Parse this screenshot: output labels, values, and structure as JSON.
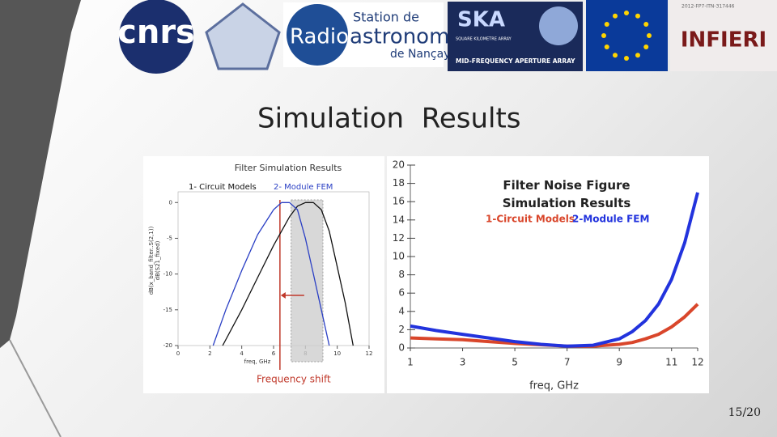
{
  "logos": {
    "cnrs": "cnrs",
    "nancay": [
      "Station de",
      "Radio",
      "astronomie",
      "de Nançay"
    ],
    "ska": [
      "SKA",
      "SQUARE KILOMETRE ARRAY",
      "MID-FREQUENCY APERTURE ARRAY"
    ],
    "infieri": [
      "2012-FP7-ITN-317446",
      "INFIERI"
    ]
  },
  "title": "Simulation  Results",
  "page_number": "15/20",
  "chart_data": [
    {
      "type": "line",
      "title": "Filter Simulation Results",
      "xlabel": "freq, GHz",
      "ylabel": "dB(x_band_filter..S(2,1))",
      "ylabel2": "dB(S21_fixed)",
      "annotation": "Frequency shift",
      "xlim": [
        0,
        12
      ],
      "xticks": [
        0,
        2,
        4,
        6,
        8,
        10,
        12
      ],
      "ylim": [
        -20,
        1.5
      ],
      "yticks": [
        0,
        -5,
        -10,
        -15,
        -20
      ],
      "highlight_x": [
        7.1,
        9.1
      ],
      "marker_x": 6.4,
      "series": [
        {
          "name": "1- Circuit Models",
          "color": "#111111",
          "x": [
            2.8,
            4,
            5,
            6,
            7,
            7.5,
            8,
            8.5,
            9,
            9.5,
            10,
            10.5,
            11
          ],
          "values": [
            -20,
            -15,
            -10.5,
            -6,
            -2,
            -0.5,
            0,
            0,
            -1,
            -4,
            -9,
            -14,
            -20
          ]
        },
        {
          "name": "2- Module FEM",
          "color": "#2a3fc4",
          "x": [
            2.2,
            3,
            4,
            5,
            6,
            6.5,
            7,
            7.5,
            8,
            8.5,
            9,
            9.5
          ],
          "values": [
            -20,
            -15,
            -9.5,
            -4.5,
            -1,
            0,
            0,
            -1,
            -5,
            -10,
            -15,
            -20
          ]
        }
      ]
    },
    {
      "type": "line",
      "title": "Filter Noise Figure Simulation Results",
      "xlabel": "freq, GHz",
      "xlim": [
        1,
        12
      ],
      "xticks": [
        1,
        3,
        5,
        7,
        9,
        11,
        12
      ],
      "ylim": [
        0,
        20
      ],
      "yticks": [
        0,
        2,
        4,
        6,
        8,
        10,
        12,
        14,
        16,
        18,
        20
      ],
      "x": [
        1,
        2,
        3,
        4,
        5,
        6,
        7,
        8,
        9,
        9.5,
        10,
        10.5,
        11,
        11.5,
        12
      ],
      "series": [
        {
          "name": "1-Circuit Models",
          "color": "#d9462b",
          "values": [
            1.1,
            1,
            0.9,
            0.7,
            0.5,
            0.35,
            0.2,
            0.2,
            0.4,
            0.6,
            1,
            1.5,
            2.3,
            3.4,
            4.8
          ]
        },
        {
          "name": "2-Module FEM",
          "color": "#2233dd",
          "values": [
            2.4,
            1.9,
            1.5,
            1.1,
            0.7,
            0.4,
            0.2,
            0.3,
            1,
            1.8,
            3,
            4.8,
            7.5,
            11.5,
            17
          ]
        }
      ]
    }
  ]
}
